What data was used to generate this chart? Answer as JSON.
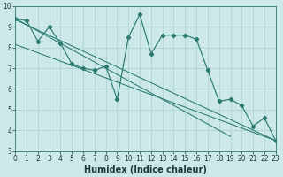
{
  "xlabel": "Humidex (Indice chaleur)",
  "bg_color": "#cce8e8",
  "line_color": "#2a7a70",
  "grid_color": "#aacfcf",
  "x_values": [
    0,
    1,
    2,
    3,
    4,
    5,
    6,
    7,
    8,
    9,
    10,
    11,
    12,
    13,
    14,
    15,
    16,
    17,
    18,
    19,
    20,
    21,
    22,
    23
  ],
  "y_main": [
    9.4,
    9.3,
    8.3,
    9.0,
    8.2,
    7.2,
    7.0,
    6.9,
    7.1,
    5.5,
    8.5,
    9.6,
    7.7,
    8.6,
    8.6,
    8.6,
    8.4,
    6.9,
    5.4,
    5.5,
    5.2,
    4.2,
    4.6,
    3.5
  ],
  "reg_lines": [
    {
      "x0": 0,
      "y0": 9.4,
      "x1": 19,
      "y1": 3.7
    },
    {
      "x0": 0,
      "y0": 9.35,
      "x1": 23,
      "y1": 3.5
    },
    {
      "x0": 0,
      "y0": 8.15,
      "x1": 23,
      "y1": 3.5
    }
  ],
  "xlim": [
    0,
    23
  ],
  "ylim": [
    3,
    10
  ],
  "yticks": [
    3,
    4,
    5,
    6,
    7,
    8,
    9,
    10
  ],
  "xticks": [
    0,
    1,
    2,
    3,
    4,
    5,
    6,
    7,
    8,
    9,
    10,
    11,
    12,
    13,
    14,
    15,
    16,
    17,
    18,
    19,
    20,
    21,
    22,
    23
  ],
  "tick_fontsize": 5.5,
  "label_fontsize": 7
}
